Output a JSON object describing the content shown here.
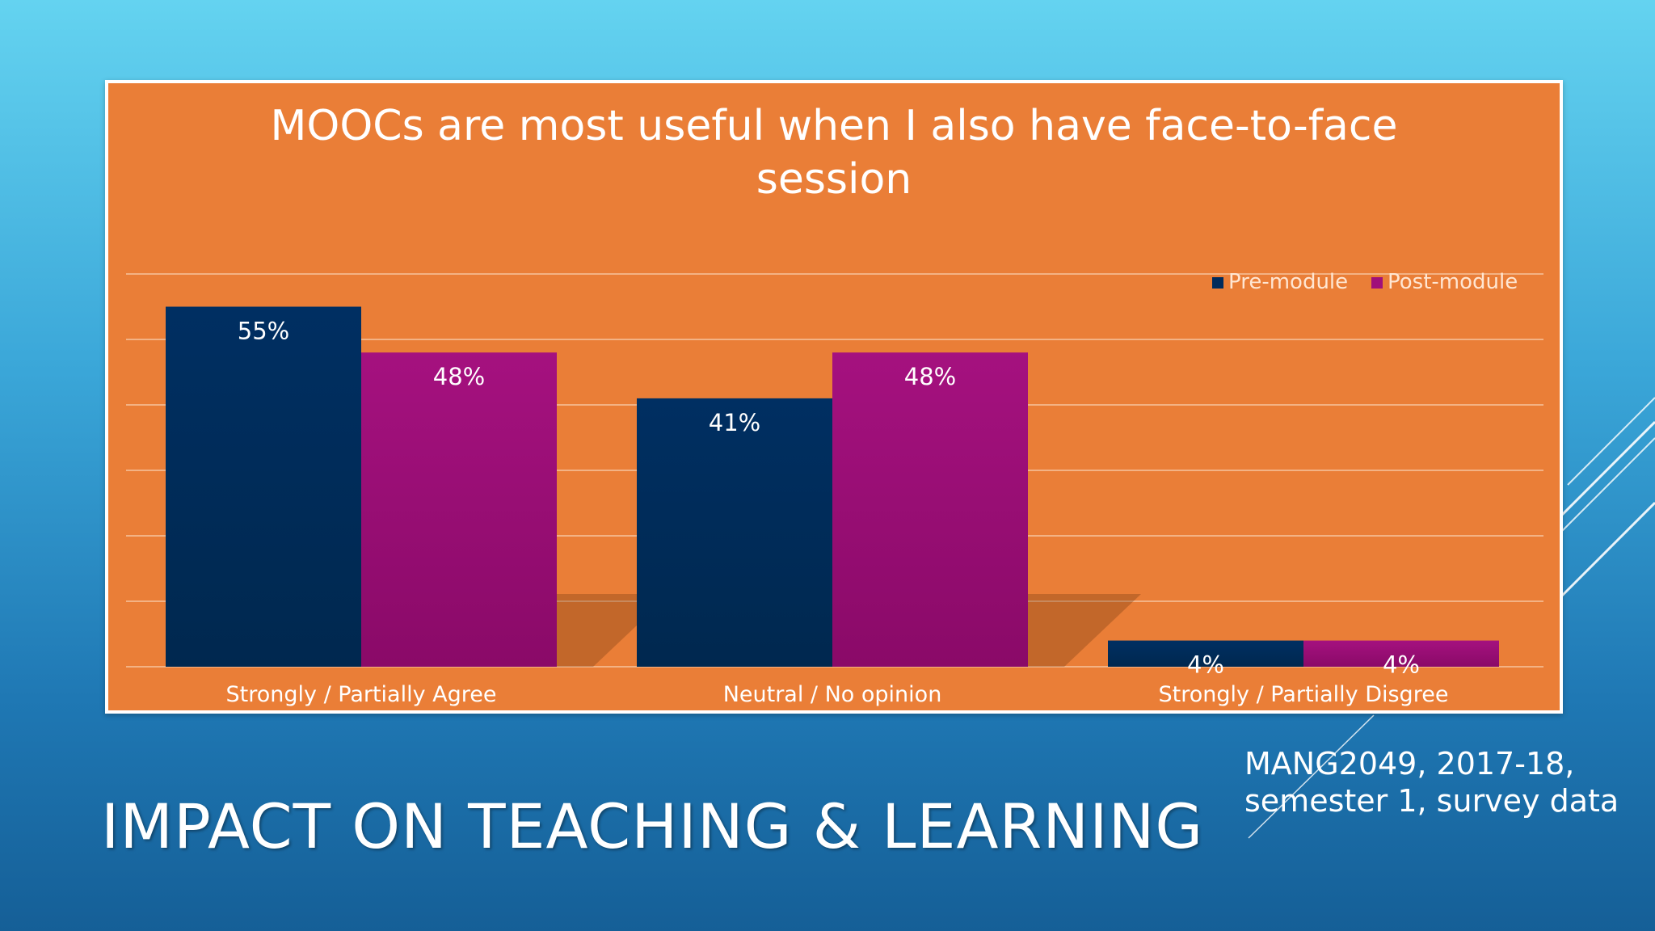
{
  "slide": {
    "title": "IMPACT ON TEACHING & LEARNING",
    "source_note": [
      "MANG2049, 2017-18,",
      "semester 1, survey data"
    ]
  },
  "chart_data": {
    "type": "bar",
    "title": [
      "MOOCs are most useful when I also have face-to-face",
      "session"
    ],
    "categories": [
      "Strongly / Partially Agree",
      "Neutral / No opinion",
      "Strongly / Partially Disgree"
    ],
    "series": [
      {
        "name": "Pre-module",
        "values": [
          55,
          41,
          4
        ],
        "labels": [
          "55%",
          "41%",
          "4%"
        ],
        "color": "#002b5c"
      },
      {
        "name": "Post-module",
        "values": [
          48,
          48,
          4
        ],
        "labels": [
          "48%",
          "48%",
          "4%"
        ],
        "color": "#a0107a"
      }
    ],
    "ylim": [
      0,
      60
    ],
    "gridlines": true,
    "legend_position": "top-right",
    "colors": {
      "background": "#ea7e37",
      "gridline": "#f6c49e",
      "text": "#ffffff"
    }
  }
}
